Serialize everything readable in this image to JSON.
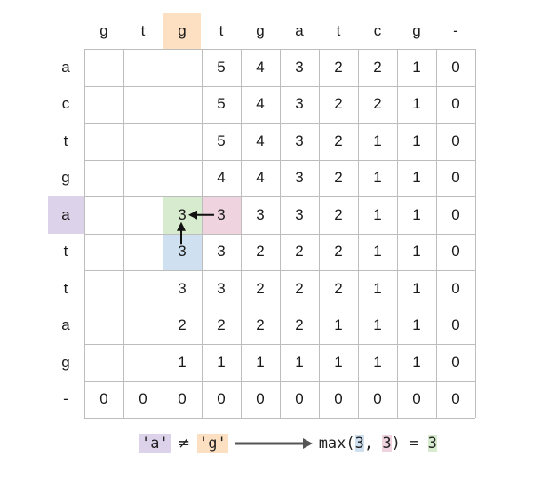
{
  "column_headers": [
    "g",
    "t",
    "g",
    "t",
    "g",
    "a",
    "t",
    "c",
    "g",
    "-"
  ],
  "row_headers": [
    "a",
    "c",
    "t",
    "g",
    "a",
    "t",
    "t",
    "a",
    "g",
    "-"
  ],
  "highlight": {
    "column": 2,
    "row": 4
  },
  "matrix": [
    [
      "",
      "",
      "",
      "5",
      "4",
      "3",
      "2",
      "2",
      "1",
      "0"
    ],
    [
      "",
      "",
      "",
      "5",
      "4",
      "3",
      "2",
      "2",
      "1",
      "0"
    ],
    [
      "",
      "",
      "",
      "5",
      "4",
      "3",
      "2",
      "1",
      "1",
      "0"
    ],
    [
      "",
      "",
      "",
      "4",
      "4",
      "3",
      "2",
      "1",
      "1",
      "0"
    ],
    [
      "",
      "",
      "3",
      "3",
      "3",
      "3",
      "2",
      "1",
      "1",
      "0"
    ],
    [
      "",
      "",
      "3",
      "3",
      "2",
      "2",
      "2",
      "1",
      "1",
      "0"
    ],
    [
      "",
      "",
      "3",
      "3",
      "2",
      "2",
      "2",
      "1",
      "1",
      "0"
    ],
    [
      "",
      "",
      "2",
      "2",
      "2",
      "2",
      "1",
      "1",
      "1",
      "0"
    ],
    [
      "",
      "",
      "1",
      "1",
      "1",
      "1",
      "1",
      "1",
      "1",
      "0"
    ],
    [
      "0",
      "0",
      "0",
      "0",
      "0",
      "0",
      "0",
      "0",
      "0",
      "0"
    ]
  ],
  "cell_highlights": [
    {
      "row": 4,
      "col": 2,
      "role": "current",
      "color": "#d7ebcf"
    },
    {
      "row": 4,
      "col": 3,
      "role": "right-neighbor",
      "color": "#efd3de"
    },
    {
      "row": 5,
      "col": 2,
      "role": "below-neighbor",
      "color": "#cfe0f1"
    }
  ],
  "arrows": [
    {
      "from": {
        "row": 4,
        "col": 3
      },
      "to": {
        "row": 4,
        "col": 2
      }
    },
    {
      "from": {
        "row": 5,
        "col": 2
      },
      "to": {
        "row": 4,
        "col": 2
      }
    }
  ],
  "formula": {
    "left": "'a'",
    "op": "≠",
    "right": "'g'",
    "max_prefix": "max(",
    "arg1": "3",
    "sep": ", ",
    "arg2": "3",
    "suffix": ") = ",
    "result": "3"
  },
  "colors": {
    "col_highlight": "#fde0c2",
    "row_highlight": "#dcd2ea",
    "grid_line": "#bdbdbd",
    "arrow": "#111111",
    "formula_arrow": "#555555"
  }
}
